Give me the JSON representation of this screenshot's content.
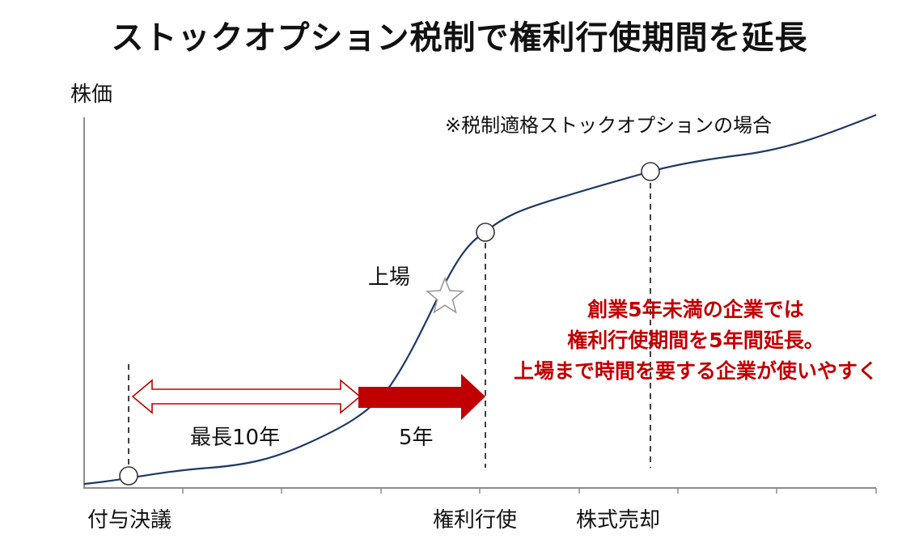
{
  "title": "ストックオプション税制で権利行使期間を延長",
  "ylabel": "株価",
  "note": "※税制適格ストックオプションの場合",
  "listing_label": "上場",
  "arrow_outline_label": "最長10年",
  "arrow_solid_label": "5年",
  "x_labels": {
    "grant": "付与決議",
    "exercise": "権利行使",
    "sale": "株式売却"
  },
  "red_note": {
    "line1": "創業5年未満の企業では",
    "line2": "権利行使期間を5年間延長。",
    "line3": "上場まで時間を要する企業が使いやすく"
  },
  "colors": {
    "curve": "#1f3864",
    "accent_red": "#c00000"
  }
}
